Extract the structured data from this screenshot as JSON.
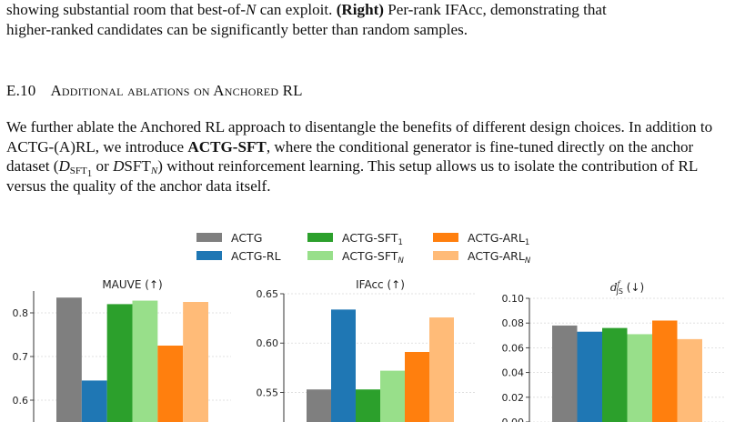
{
  "intro": {
    "line1_pre": "showing substantial room that best-of-",
    "line1_var": "N",
    "line1_mid": " can exploit. ",
    "right_label": "(Right)",
    "line1_post": " Per-rank IFAcc, demonstrating that",
    "line2": "higher-ranked candidates can be significantly better than random samples."
  },
  "section": {
    "number": "E.10",
    "title": "Additional ablations on Anchored RL"
  },
  "body": {
    "t1": "We further ablate the Anchored RL approach to disentangle the benefits of different design choices. In addition to ACTG-(A)RL, we introduce ",
    "bold": "ACTG-SFT",
    "t2": ", where the conditional generator is fine-tuned directly on the anchor dataset (",
    "d": "D",
    "sub1": "SFT",
    "sub1b": "1",
    "t3": " or ",
    "d2": "D",
    "sft_n": "SFT",
    "sub_n": "N",
    "t4": ") without reinforcement learning. This setup allows us to isolate the contribution of RL versus the quality of the anchor data itself."
  },
  "legend": [
    {
      "label": "ACTG",
      "sub": "",
      "color": "#7f7f7f"
    },
    {
      "label": "ACTG-RL",
      "sub": "",
      "color": "#1f77b4"
    },
    {
      "label": "ACTG-SFT",
      "sub": "1",
      "color": "#2ca02c"
    },
    {
      "label": "ACTG-SFT",
      "sub": "N",
      "color": "#98df8a"
    },
    {
      "label": "ACTG-ARL",
      "sub": "1",
      "color": "#ff7f0e"
    },
    {
      "label": "ACTG-ARL",
      "sub": "N",
      "color": "#ffbb78"
    }
  ],
  "chart_data": [
    {
      "type": "bar",
      "title": "MAUVE (↑)",
      "categories": [
        "ACTG",
        "ACTG-RL",
        "ACTG-SFT1",
        "ACTG-SFTN",
        "ACTG-ARL1",
        "ACTG-ARLN"
      ],
      "values": [
        0.835,
        0.645,
        0.82,
        0.828,
        0.725,
        0.825
      ],
      "ylim": [
        0.55,
        0.85
      ],
      "yticks": [
        "0.6",
        "0.7",
        "0.8"
      ],
      "ytick_values": [
        0.6,
        0.7,
        0.8
      ],
      "grid": true
    },
    {
      "type": "bar",
      "title": "IFAcc (↑)",
      "categories": [
        "ACTG",
        "ACTG-RL",
        "ACTG-SFT1",
        "ACTG-SFTN",
        "ACTG-ARL1",
        "ACTG-ARLN"
      ],
      "values": [
        0.553,
        0.634,
        0.553,
        0.572,
        0.591,
        0.626
      ],
      "ylim": [
        0.52,
        0.65
      ],
      "yticks": [
        "0.55",
        "0.60",
        "0.65"
      ],
      "ytick_values": [
        0.55,
        0.6,
        0.65
      ],
      "grid": true
    },
    {
      "type": "bar",
      "title": "d",
      "title_sup": "f",
      "title_sub": "JS",
      "title_tail": " (↓)",
      "categories": [
        "ACTG",
        "ACTG-RL",
        "ACTG-SFT1",
        "ACTG-SFTN",
        "ACTG-ARL1",
        "ACTG-ARLN"
      ],
      "values": [
        0.078,
        0.073,
        0.076,
        0.071,
        0.082,
        0.067
      ],
      "ylim": [
        0.0,
        0.1
      ],
      "yticks": [
        "0.00",
        "0.02",
        "0.04",
        "0.06",
        "0.08",
        "0.10"
      ],
      "ytick_values": [
        0.0,
        0.02,
        0.04,
        0.06,
        0.08,
        0.1
      ],
      "grid": true
    }
  ]
}
